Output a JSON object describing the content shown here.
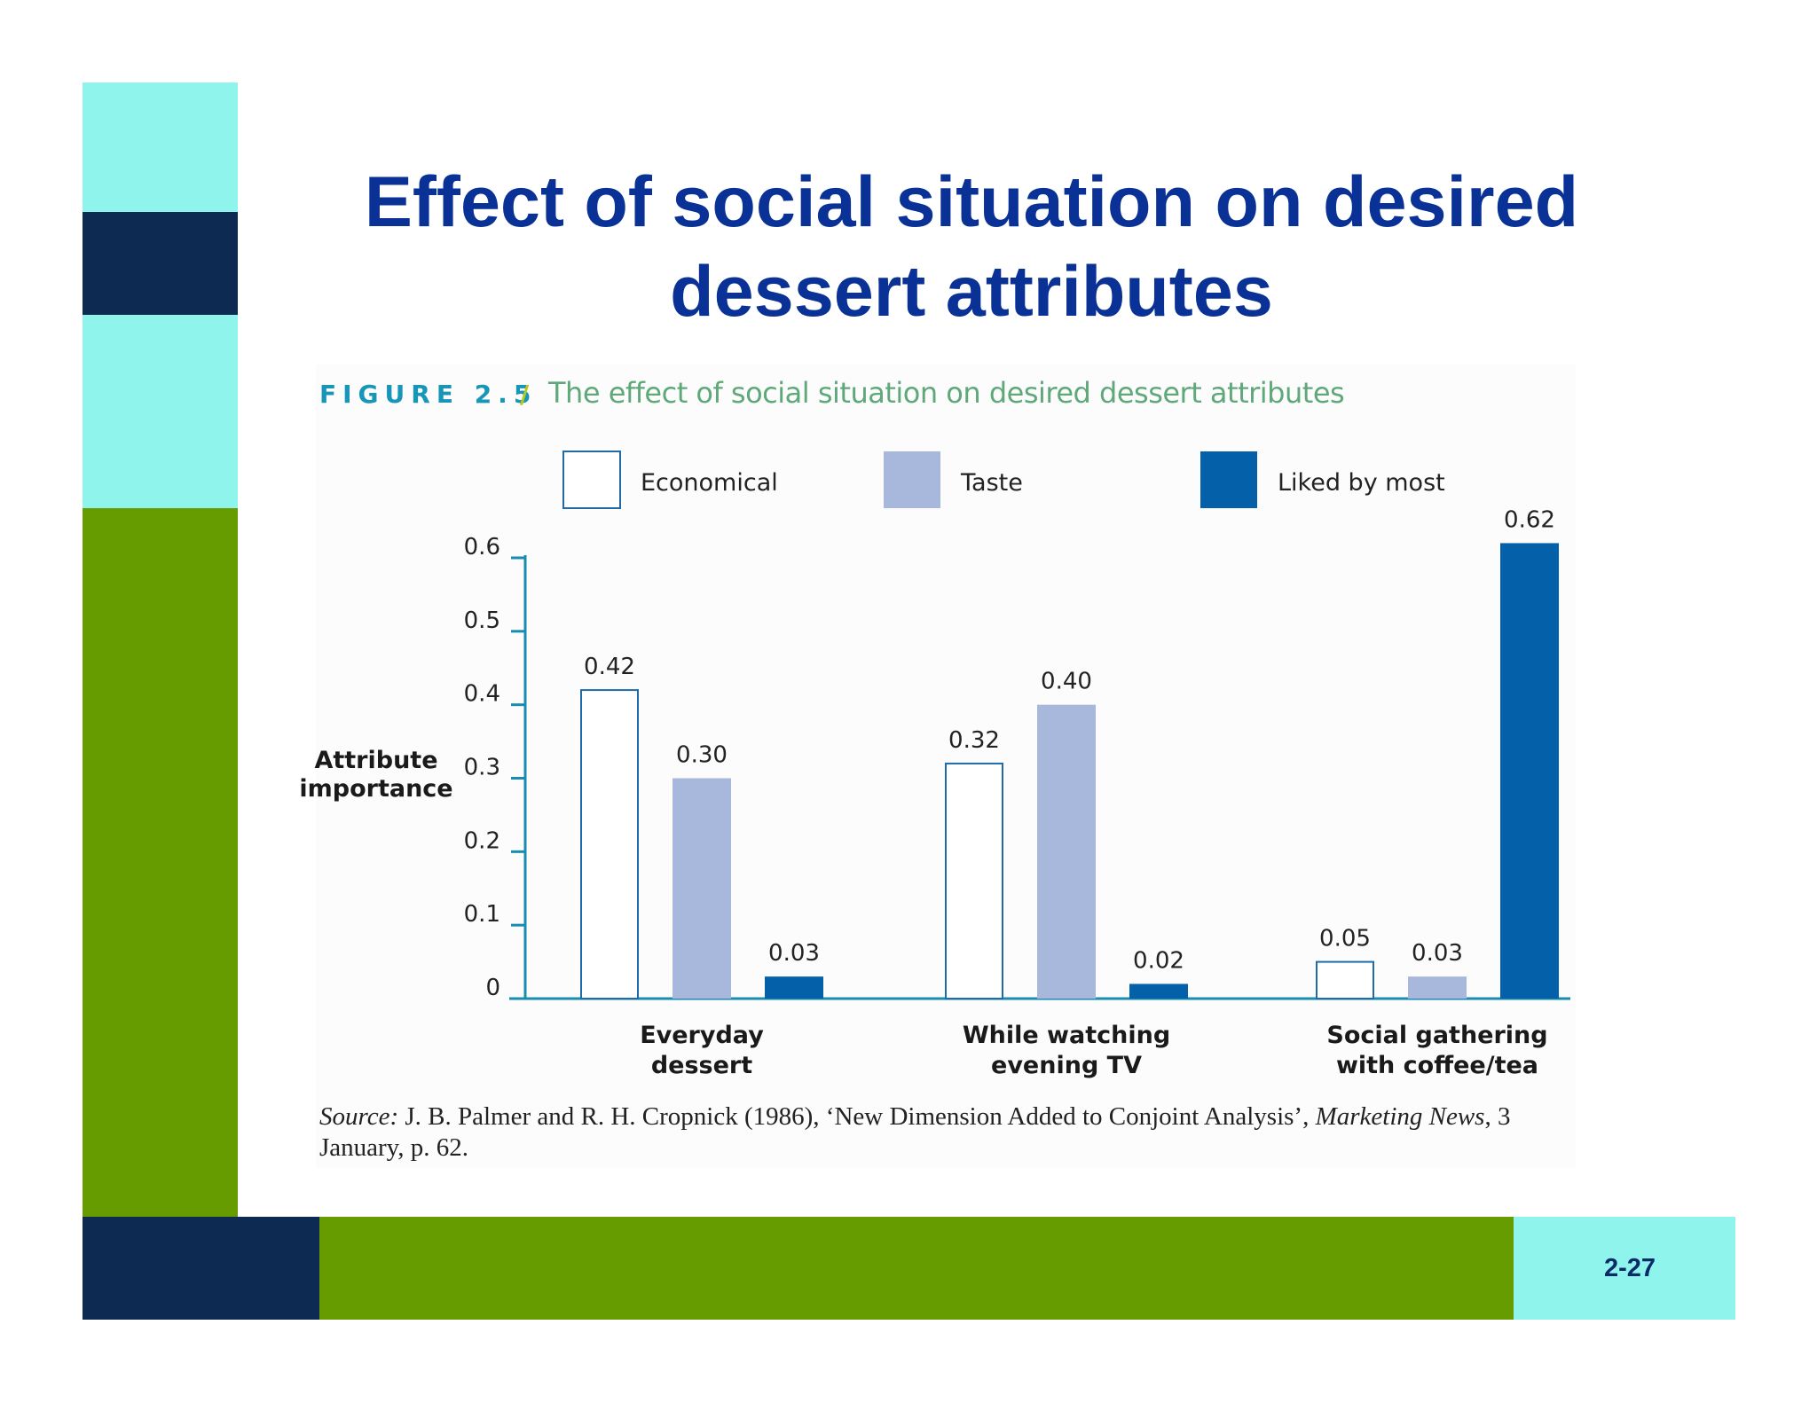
{
  "title": "Effect of social situation on desired dessert attributes",
  "figure": {
    "label": "FIGURE 2.5",
    "separator": "/",
    "caption": "The effect of social situation on desired dessert attributes"
  },
  "source": {
    "prefix": "Source:",
    "text": " J. B. Palmer and R. H. Cropnick (1986), ‘New Dimension Added to Conjoint Analysis’, ",
    "journal": "Marketing News",
    "suffix": ", 3 January, p. 62."
  },
  "slide_number": "2-27",
  "colors": {
    "title": "#0a3296",
    "light_cyan": "#8ef4ec",
    "navy": "#0c2a52",
    "green": "#679c00",
    "economical": "#ffffff",
    "taste": "#a8b8dc",
    "liked_by_most": "#0460a8",
    "axis": "#1a8cb0"
  },
  "chart_data": {
    "type": "bar",
    "title": "The effect of social situation on desired dessert attributes",
    "xlabel": "",
    "ylabel": "Attribute importance",
    "ylabel_lines": [
      "Attribute",
      "importance"
    ],
    "ylim": [
      0,
      0.6
    ],
    "yticks": [
      {
        "value": 0,
        "label": "0"
      },
      {
        "value": 0.1,
        "label": "0.1"
      },
      {
        "value": 0.2,
        "label": "0.2"
      },
      {
        "value": 0.3,
        "label": "0.3"
      },
      {
        "value": 0.4,
        "label": "0.4"
      },
      {
        "value": 0.5,
        "label": "0.5"
      },
      {
        "value": 0.6,
        "label": "0.6"
      }
    ],
    "categories": [
      {
        "name": "Everyday dessert",
        "lines": [
          "Everyday",
          "dessert"
        ]
      },
      {
        "name": "While watching evening TV",
        "lines": [
          "While watching",
          "evening TV"
        ]
      },
      {
        "name": "Social gathering with coffee/tea",
        "lines": [
          "Social gathering",
          "with coffee/tea"
        ]
      }
    ],
    "legend_position": "top",
    "series": [
      {
        "name": "Economical",
        "key": "economical",
        "values": [
          0.42,
          0.32,
          0.05
        ],
        "labels": [
          "0.42",
          "0.32",
          "0.05"
        ]
      },
      {
        "name": "Taste",
        "key": "taste",
        "values": [
          0.3,
          0.4,
          0.03
        ],
        "labels": [
          "0.30",
          "0.40",
          "0.03"
        ]
      },
      {
        "name": "Liked by most",
        "key": "liked_by_most",
        "values": [
          0.03,
          0.02,
          0.62
        ],
        "labels": [
          "0.03",
          "0.02",
          "0.62"
        ]
      }
    ]
  }
}
